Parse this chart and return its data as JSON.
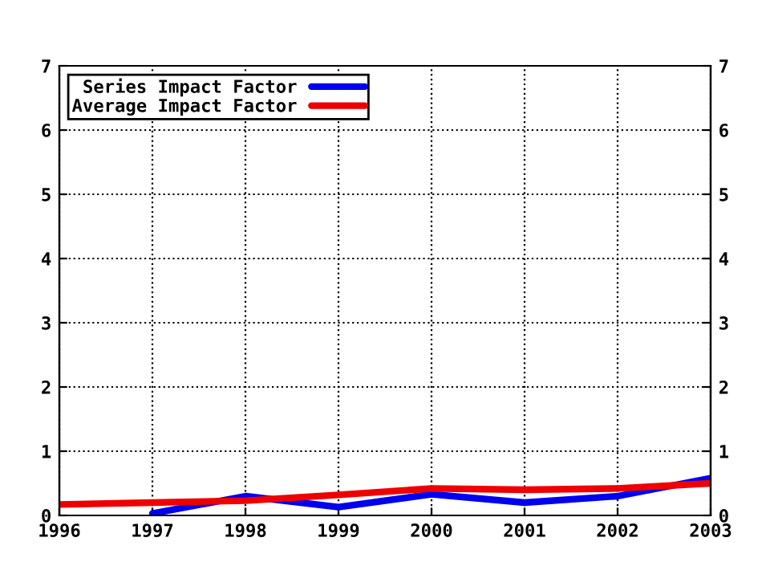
{
  "chart_data": {
    "type": "line",
    "x": [
      1996,
      1997,
      1998,
      1999,
      2000,
      2001,
      2002,
      2003
    ],
    "series": [
      {
        "name": "Series Impact Factor",
        "color": "#0000ee",
        "values": [
          null,
          0.03,
          0.3,
          0.13,
          0.33,
          0.2,
          0.3,
          0.58
        ]
      },
      {
        "name": "Average Impact Factor",
        "color": "#ee0000",
        "values": [
          0.17,
          0.2,
          0.23,
          0.32,
          0.42,
          0.4,
          0.42,
          0.5
        ]
      }
    ],
    "xlim": [
      1996,
      2003
    ],
    "xticks": [
      1996,
      1997,
      1998,
      1999,
      2000,
      2001,
      2002,
      2003
    ],
    "ylim": [
      0,
      7
    ],
    "yticks": [
      0,
      1,
      2,
      3,
      4,
      5,
      6,
      7
    ],
    "y2lim": [
      0,
      7
    ],
    "y2ticks": [
      0,
      1,
      2,
      3,
      4,
      5,
      6,
      7
    ],
    "grid": true,
    "legend": "top left",
    "marker": "none",
    "line_style": "solid"
  }
}
